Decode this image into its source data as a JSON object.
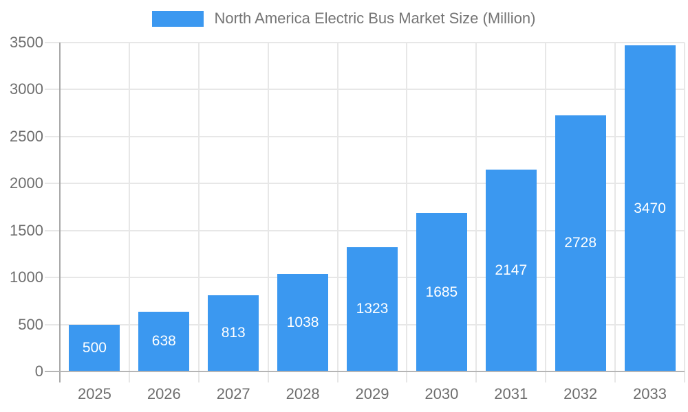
{
  "chart_data": {
    "type": "bar",
    "title": "North America Electric Bus Market Size (Million)",
    "categories": [
      "2025",
      "2026",
      "2027",
      "2028",
      "2029",
      "2030",
      "2031",
      "2032",
      "2033"
    ],
    "values": [
      500,
      638,
      813,
      1038,
      1323,
      1685,
      2147,
      2728,
      3470
    ],
    "xlabel": "",
    "ylabel": "",
    "ylim": [
      0,
      3500
    ],
    "ytick_step": 500,
    "grid": true,
    "legend_position": "top-center",
    "value_labels": "inside-center"
  },
  "colors": {
    "bar": "#3B98F0",
    "value_label": "#FFFFFF",
    "axis_text": "#6E6E6E",
    "legend_text": "#757575",
    "gridline": "#E7E7E7",
    "axis_line": "#A8A8A8",
    "baseline": "#B5B5B5",
    "background": "#FFFFFF"
  }
}
